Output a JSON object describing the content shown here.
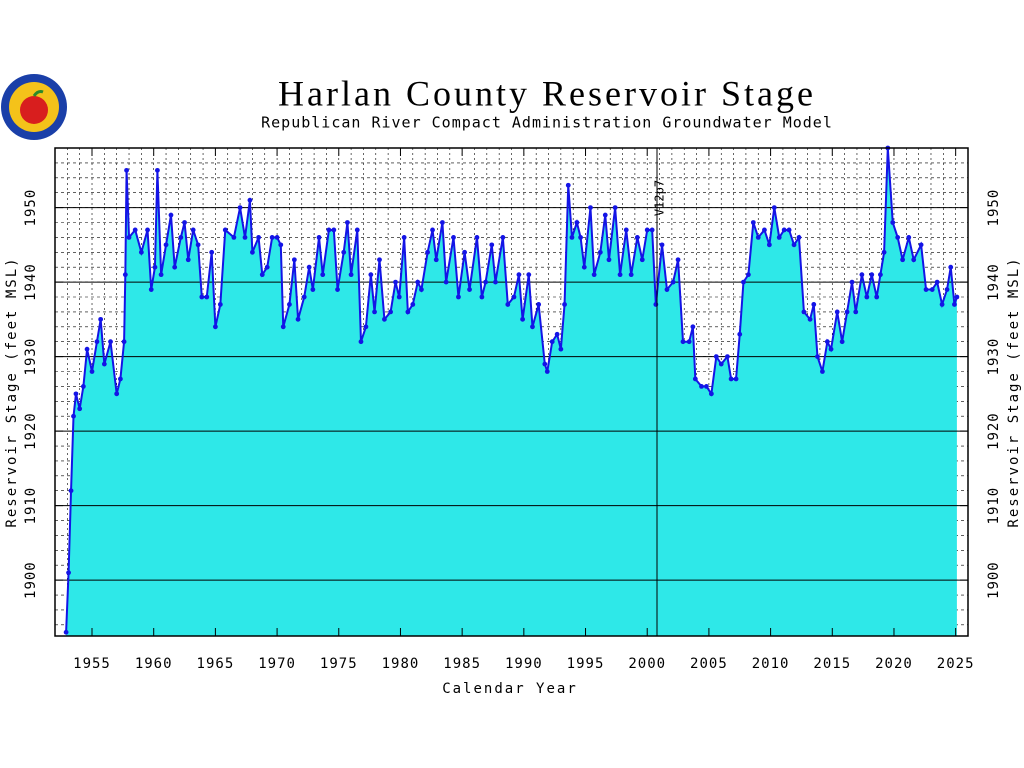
{
  "chart_data": {
    "type": "area",
    "title": "Harlan County Reservoir Stage",
    "subtitle": "Republican River Compact Administration Groundwater Model",
    "x_label": "Calendar Year",
    "y_label": "Reservoir Stage (feet MSL)",
    "annotations": [
      {
        "text": "V12p7"
      }
    ],
    "xlim": [
      1952,
      2026
    ],
    "ylim": [
      1892.5,
      1958
    ],
    "xticks": [
      1955,
      1960,
      1965,
      1970,
      1975,
      1980,
      1985,
      1990,
      1995,
      2000,
      2005,
      2010,
      2015,
      2020,
      2025
    ],
    "yticks": [
      1900,
      1910,
      1920,
      1930,
      1940,
      1950
    ],
    "minor_grid": {
      "x": 1,
      "y": 2
    },
    "grid": true,
    "color": "#1414e6",
    "fill_color": "#2ee8e8",
    "x": [
      1952.9,
      1953.1,
      1953.3,
      1953.5,
      1953.7,
      1954.0,
      1954.3,
      1954.6,
      1955.0,
      1955.4,
      1955.7,
      1956.0,
      1956.5,
      1957.0,
      1957.3,
      1957.6,
      1957.7,
      1957.8,
      1958.0,
      1958.5,
      1959.0,
      1959.5,
      1959.8,
      1960.1,
      1960.3,
      1960.6,
      1961.0,
      1961.4,
      1961.7,
      1962.2,
      1962.5,
      1962.8,
      1963.2,
      1963.6,
      1963.9,
      1964.3,
      1964.7,
      1965.0,
      1965.4,
      1965.8,
      1966.5,
      1967.0,
      1967.4,
      1967.8,
      1968.0,
      1968.5,
      1968.8,
      1969.2,
      1969.6,
      1970.0,
      1970.3,
      1970.5,
      1971.0,
      1971.4,
      1971.7,
      1972.2,
      1972.6,
      1972.9,
      1973.4,
      1973.7,
      1974.2,
      1974.6,
      1974.9,
      1975.4,
      1975.7,
      1976.0,
      1976.5,
      1976.8,
      1977.2,
      1977.6,
      1977.9,
      1978.3,
      1978.7,
      1979.2,
      1979.6,
      1979.9,
      1980.3,
      1980.6,
      1981.0,
      1981.4,
      1981.7,
      1982.2,
      1982.6,
      1982.9,
      1983.4,
      1983.7,
      1984.3,
      1984.7,
      1985.2,
      1985.6,
      1986.2,
      1986.6,
      1986.9,
      1987.4,
      1987.7,
      1988.3,
      1988.7,
      1989.2,
      1989.6,
      1989.9,
      1990.4,
      1990.7,
      1991.2,
      1991.7,
      1991.9,
      1992.3,
      1992.7,
      1993.0,
      1993.3,
      1993.6,
      1993.9,
      1994.3,
      1994.6,
      1994.9,
      1995.4,
      1995.7,
      1996.2,
      1996.6,
      1996.9,
      1997.4,
      1997.8,
      1998.3,
      1998.7,
      1999.2,
      1999.6,
      2000.0,
      2000.4,
      2000.7,
      2001.2,
      2001.6,
      2002.1,
      2002.5,
      2002.9,
      2003.4,
      2003.7,
      2003.9,
      2004.4,
      2004.8,
      2005.2,
      2005.6,
      2006.0,
      2006.5,
      2006.8,
      2007.2,
      2007.5,
      2007.8,
      2008.2,
      2008.6,
      2009.0,
      2009.5,
      2009.9,
      2010.3,
      2010.7,
      2011.1,
      2011.5,
      2011.9,
      2012.3,
      2012.7,
      2013.2,
      2013.5,
      2013.8,
      2014.2,
      2014.6,
      2014.9,
      2015.4,
      2015.8,
      2016.2,
      2016.6,
      2016.9,
      2017.4,
      2017.8,
      2018.2,
      2018.6,
      2018.9,
      2019.2,
      2019.5,
      2019.9,
      2020.3,
      2020.7,
      2021.2,
      2021.6,
      2022.2,
      2022.6,
      2023.1,
      2023.5,
      2023.9,
      2024.3,
      2024.6,
      2024.9,
      2025.1
    ],
    "values": [
      1893,
      1901,
      1912,
      1922,
      1925,
      1923,
      1926,
      1931,
      1928,
      1932,
      1935,
      1929,
      1932,
      1925,
      1927,
      1932,
      1941,
      1955,
      1946,
      1947,
      1944,
      1947,
      1939,
      1942,
      1955,
      1941,
      1945,
      1949,
      1942,
      1946,
      1948,
      1943,
      1947,
      1945,
      1938,
      1938,
      1944,
      1934,
      1937,
      1947,
      1946,
      1950,
      1946,
      1951,
      1944,
      1946,
      1941,
      1942,
      1946,
      1946,
      1945,
      1934,
      1937,
      1943,
      1935,
      1938,
      1942,
      1939,
      1946,
      1941,
      1947,
      1947,
      1939,
      1944,
      1948,
      1941,
      1947,
      1932,
      1934,
      1941,
      1936,
      1943,
      1935,
      1936,
      1940,
      1938,
      1946,
      1936,
      1937,
      1940,
      1939,
      1944,
      1947,
      1943,
      1948,
      1940,
      1946,
      1938,
      1944,
      1939,
      1946,
      1938,
      1940,
      1945,
      1940,
      1946,
      1937,
      1938,
      1941,
      1935,
      1941,
      1934,
      1937,
      1929,
      1928,
      1932,
      1933,
      1931,
      1937,
      1953,
      1946,
      1948,
      1946,
      1942,
      1950,
      1941,
      1944,
      1949,
      1943,
      1950,
      1941,
      1947,
      1941,
      1946,
      1943,
      1947,
      1947,
      1937,
      1945,
      1939,
      1940,
      1943,
      1932,
      1932,
      1934,
      1927,
      1926,
      1926,
      1925,
      1930,
      1929,
      1930,
      1927,
      1927,
      1933,
      1940,
      1941,
      1948,
      1946,
      1947,
      1945,
      1950,
      1946,
      1947,
      1947,
      1945,
      1946,
      1936,
      1935,
      1937,
      1930,
      1928,
      1932,
      1931,
      1936,
      1932,
      1936,
      1940,
      1936,
      1941,
      1938,
      1941,
      1938,
      1941,
      1944,
      1958,
      1948,
      1946,
      1943,
      1946,
      1943,
      1945,
      1939,
      1939,
      1940,
      1937,
      1939,
      1942,
      1937,
      1938
    ]
  }
}
